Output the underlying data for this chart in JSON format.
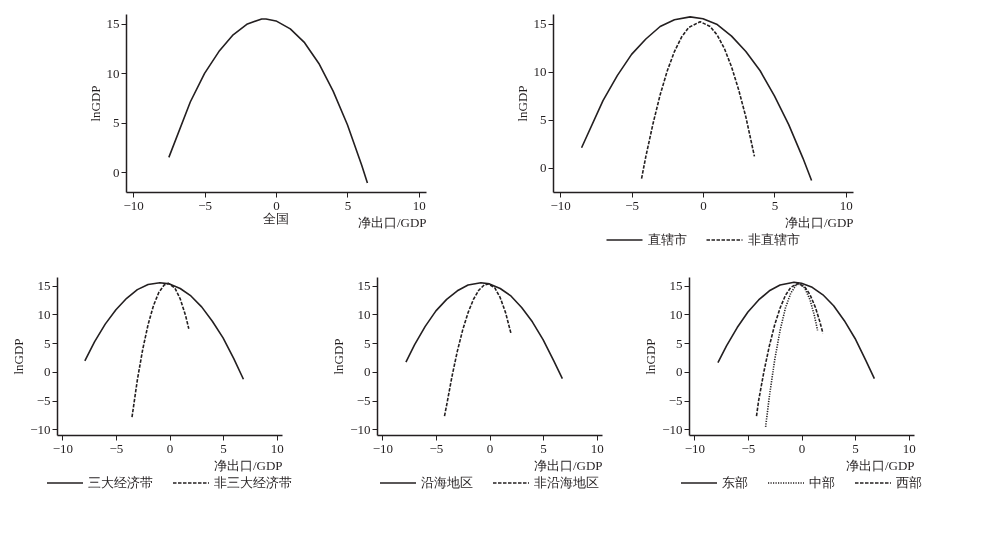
{
  "chart_data": [
    {
      "type": "line",
      "title": "全国",
      "xlabel": "净出口/GDP",
      "ylabel": "lnGDP",
      "xlim": [
        -10.5,
        10.5
      ],
      "ylim": [
        -2,
        16
      ],
      "xticks": [
        -10,
        -5,
        0,
        5,
        10
      ],
      "yticks": [
        0,
        5,
        10,
        15
      ],
      "grid": false,
      "series": [
        {
          "color": "#231f20",
          "line_style": "solid",
          "x": [
            -7.5,
            -6,
            -5,
            -4,
            -3,
            -2,
            -1,
            -0.7,
            0,
            1,
            2,
            3,
            4,
            5,
            6,
            6.4
          ],
          "values": [
            1.5,
            7.1,
            10.0,
            12.2,
            13.9,
            15.0,
            15.5,
            15.5,
            15.3,
            14.5,
            13.1,
            11.0,
            8.2,
            4.8,
            0.7,
            -1.1
          ]
        }
      ]
    },
    {
      "type": "line",
      "xlabel": "净出口/GDP",
      "ylabel": "lnGDP",
      "xlim": [
        -10.5,
        10.5
      ],
      "ylim": [
        -2.5,
        16
      ],
      "xticks": [
        -10,
        -5,
        0,
        5,
        10
      ],
      "yticks": [
        0,
        5,
        10,
        15
      ],
      "grid": false,
      "legend": "bottom",
      "series": [
        {
          "name": "直辖市",
          "color": "#231f20",
          "line_style": "solid",
          "x": [
            -8.5,
            -7,
            -6,
            -5,
            -4,
            -3,
            -2,
            -0.9,
            0,
            1,
            2,
            3,
            4,
            5,
            6,
            7,
            7.6
          ],
          "values": [
            2.1,
            7.0,
            9.6,
            11.8,
            13.4,
            14.7,
            15.4,
            15.7,
            15.5,
            14.9,
            13.7,
            12.1,
            10.1,
            7.5,
            4.5,
            1.0,
            -1.3
          ]
        },
        {
          "name": "非直辖市",
          "color": "#231f20",
          "line_style": "dashed",
          "x": [
            -4.3,
            -4,
            -3.5,
            -3,
            -2.5,
            -2,
            -1.5,
            -1,
            -0.2,
            0.5,
            1,
            1.5,
            2,
            2.5,
            3,
            3.6
          ],
          "values": [
            -1.1,
            1.2,
            4.6,
            7.6,
            10.1,
            12.1,
            13.6,
            14.6,
            15.2,
            14.7,
            13.8,
            12.4,
            10.5,
            8.1,
            5.3,
            1.2
          ]
        }
      ]
    },
    {
      "type": "line",
      "xlabel": "净出口/GDP",
      "ylabel": "lnGDP",
      "xlim": [
        -10.5,
        10.5
      ],
      "ylim": [
        -11,
        16.5
      ],
      "xticks": [
        -10,
        -5,
        0,
        5,
        10
      ],
      "yticks": [
        -10,
        -5,
        0,
        5,
        10,
        15
      ],
      "grid": false,
      "legend": "bottom",
      "series": [
        {
          "name": "三大经济带",
          "color": "#231f20",
          "line_style": "solid",
          "x": [
            -7.9,
            -7,
            -6,
            -5,
            -4,
            -3,
            -2,
            -0.9,
            0,
            1,
            2,
            3,
            4,
            5,
            6,
            6.9
          ],
          "values": [
            1.9,
            5.2,
            8.3,
            10.8,
            12.8,
            14.3,
            15.2,
            15.5,
            15.3,
            14.5,
            13.2,
            11.3,
            8.8,
            5.9,
            2.3,
            -1.3
          ]
        },
        {
          "name": "非三大经济带",
          "color": "#231f20",
          "line_style": "dashed",
          "x": [
            -3.5,
            -3,
            -2.5,
            -2,
            -1.5,
            -1,
            -0.5,
            -0.1,
            0.5,
            1,
            1.5,
            1.8
          ],
          "values": [
            -7.9,
            -1.4,
            3.9,
            8.2,
            11.5,
            13.8,
            15.1,
            15.4,
            14.6,
            12.7,
            9.8,
            7.5
          ]
        }
      ]
    },
    {
      "type": "line",
      "xlabel": "净出口/GDP",
      "ylabel": "lnGDP",
      "xlim": [
        -10.5,
        10.5
      ],
      "ylim": [
        -11,
        16.5
      ],
      "xticks": [
        -10,
        -5,
        0,
        5,
        10
      ],
      "yticks": [
        -10,
        -5,
        0,
        5,
        10,
        15
      ],
      "grid": false,
      "legend": "bottom",
      "series": [
        {
          "name": "沿海地区",
          "color": "#231f20",
          "line_style": "solid",
          "x": [
            -7.8,
            -7,
            -6,
            -5,
            -4,
            -3,
            -2,
            -0.8,
            0,
            1,
            2,
            3,
            4,
            5,
            6,
            6.8
          ],
          "values": [
            1.7,
            4.7,
            7.9,
            10.6,
            12.6,
            14.1,
            15.1,
            15.5,
            15.3,
            14.5,
            13.2,
            11.2,
            8.7,
            5.6,
            1.9,
            -1.2
          ]
        },
        {
          "name": "非沿海地区",
          "color": "#231f20",
          "line_style": "dashed",
          "x": [
            -4.2,
            -4,
            -3.5,
            -3,
            -2.5,
            -2,
            -1.5,
            -1,
            -0.5,
            -0.1,
            0.5,
            1,
            1.5,
            2
          ],
          "values": [
            -7.7,
            -5.8,
            -0.8,
            3.6,
            7.3,
            10.3,
            12.6,
            14.2,
            15.1,
            15.3,
            14.6,
            12.9,
            10.3,
            6.7
          ]
        }
      ]
    },
    {
      "type": "line",
      "xlabel": "净出口/GDP",
      "ylabel": "lnGDP",
      "xlim": [
        -10.5,
        10.5
      ],
      "ylim": [
        -11,
        16.5
      ],
      "xticks": [
        -10,
        -5,
        0,
        5,
        10
      ],
      "yticks": [
        -10,
        -5,
        0,
        5,
        10,
        15
      ],
      "grid": false,
      "legend": "bottom",
      "series": [
        {
          "name": "东部",
          "color": "#231f20",
          "line_style": "solid",
          "x": [
            -7.8,
            -7,
            -6,
            -5,
            -4,
            -3,
            -2,
            -0.7,
            0,
            1,
            2,
            3,
            4,
            5,
            6,
            6.8
          ],
          "values": [
            1.6,
            4.5,
            7.7,
            10.4,
            12.5,
            14.1,
            15.1,
            15.6,
            15.4,
            14.7,
            13.4,
            11.5,
            8.9,
            5.8,
            2.0,
            -1.2
          ]
        },
        {
          "name": "中部",
          "color": "#231f20",
          "line_style": "dotted",
          "x": [
            -3.35,
            -3,
            -2.5,
            -2,
            -1.5,
            -1,
            -0.5,
            -0.2,
            0.3,
            0.8,
            1.2,
            1.5
          ],
          "values": [
            -9.6,
            -4.3,
            2.1,
            7.2,
            11.1,
            13.7,
            15.1,
            15.3,
            14.6,
            12.5,
            9.8,
            7.2
          ]
        },
        {
          "name": "西部",
          "color": "#231f20",
          "line_style": "dashed",
          "x": [
            -4.2,
            -4,
            -3.5,
            -3,
            -2.5,
            -2,
            -1.5,
            -1,
            -0.3,
            0.3,
            0.8,
            1.3,
            1.7,
            2.0
          ],
          "values": [
            -7.7,
            -5.0,
            0.1,
            4.5,
            8.2,
            11.1,
            13.3,
            14.7,
            15.4,
            14.8,
            13.4,
            11.2,
            8.8,
            6.7
          ]
        }
      ]
    }
  ]
}
